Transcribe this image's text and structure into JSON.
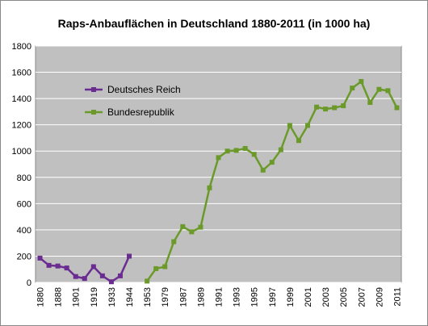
{
  "chart_data": {
    "type": "line",
    "title": "Raps-Anbauflächen in Deutschland 1880-2011 (in 1000 ha)",
    "categories": [
      "1880",
      null,
      "1888",
      null,
      "1901",
      null,
      "1919",
      null,
      "1933",
      null,
      "1944",
      null,
      "1953",
      null,
      "1979",
      null,
      "1987",
      null,
      "1989",
      null,
      "1991",
      null,
      "1993",
      null,
      "1995",
      null,
      "1997",
      null,
      "1999",
      null,
      "2001",
      null,
      "2003",
      null,
      "2005",
      null,
      "2007",
      null,
      "2009",
      null,
      "2011"
    ],
    "series": [
      {
        "name": "Deutsches Reich",
        "color": "#6a2c91",
        "values": [
          185,
          130,
          125,
          110,
          45,
          30,
          120,
          50,
          5,
          50,
          200,
          null,
          null,
          null,
          null,
          null,
          null,
          null,
          null,
          null,
          null,
          null,
          null,
          null,
          null,
          null,
          null,
          null,
          null,
          null,
          null,
          null,
          null,
          null,
          null,
          null,
          null,
          null,
          null,
          null,
          null
        ]
      },
      {
        "name": "Bundesrepublik",
        "color": "#6b9a2a",
        "values": [
          null,
          null,
          null,
          null,
          null,
          null,
          null,
          null,
          null,
          null,
          null,
          null,
          10,
          105,
          120,
          310,
          425,
          385,
          420,
          720,
          950,
          1000,
          1005,
          1020,
          975,
          855,
          915,
          1010,
          1195,
          1080,
          1195,
          1335,
          1320,
          1330,
          1345,
          1480,
          1530,
          1370,
          1470,
          1460,
          1330
        ]
      }
    ],
    "ylim": [
      0,
      1800
    ],
    "yticks": [
      0,
      200,
      400,
      600,
      800,
      1000,
      1200,
      1400,
      1600,
      1800
    ],
    "grid": true,
    "legend": "upper-left"
  }
}
